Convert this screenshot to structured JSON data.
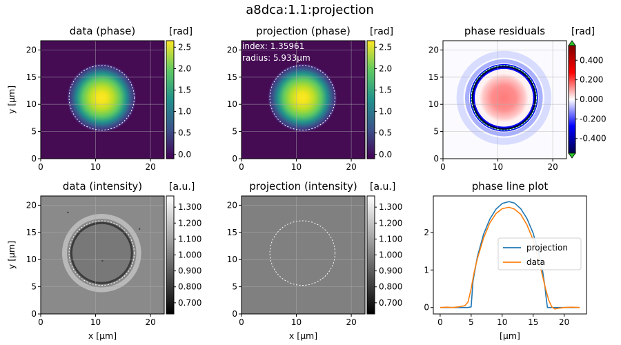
{
  "figure": {
    "suptitle": "a8dca:1.1:projection"
  },
  "chart_data": [
    {
      "id": "data-phase",
      "type": "heatmap",
      "title": "data (phase)",
      "colormap": "viridis",
      "xlabel": "",
      "ylabel": "y [µm]",
      "xlim": [
        0,
        22.5
      ],
      "ylim": [
        0,
        21.7
      ],
      "xticks": [
        "0",
        "10",
        "20"
      ],
      "yticks": [
        "0",
        "5",
        "10",
        "15",
        "20"
      ],
      "colorbar": {
        "label": "[rad]",
        "range": [
          -0.1,
          2.65
        ],
        "ticks": [
          "0.0",
          "0.5",
          "1.0",
          "1.5",
          "2.0",
          "2.5"
        ]
      },
      "circle": {
        "center_um": [
          11.1,
          11.2
        ],
        "radius_um": 5.933
      }
    },
    {
      "id": "projection-phase",
      "type": "heatmap",
      "title": "projection (phase)",
      "colormap": "viridis",
      "xlabel": "",
      "ylabel": "",
      "xlim": [
        0,
        22.5
      ],
      "ylim": [
        0,
        21.7
      ],
      "xticks": [
        "0",
        "10",
        "20"
      ],
      "yticks": [
        "0",
        "5",
        "10",
        "15",
        "20"
      ],
      "annotations": [
        "index: 1.35961",
        "radius: 5.933µm"
      ],
      "colorbar": {
        "label": "[rad]",
        "range": [
          -0.1,
          2.65
        ],
        "ticks": [
          "0.0",
          "0.5",
          "1.0",
          "1.5",
          "2.0",
          "2.5"
        ]
      },
      "circle": {
        "center_um": [
          11.1,
          11.2
        ],
        "radius_um": 5.933
      }
    },
    {
      "id": "phase-residuals",
      "type": "heatmap",
      "title": "phase residuals",
      "colormap": "seismic",
      "xlabel": "",
      "ylabel": "",
      "xlim": [
        0,
        22.5
      ],
      "ylim": [
        0,
        21.7
      ],
      "xticks": [
        "0",
        "10",
        "20"
      ],
      "yticks": [
        "0",
        "5",
        "10",
        "15",
        "20"
      ],
      "colorbar": {
        "label": "[rad]",
        "range": [
          -0.55,
          0.55
        ],
        "ticks": [
          "0.400",
          "0.200",
          "0.000",
          "-0.200",
          "-0.400"
        ],
        "extend": "both",
        "extend_color": "#2ecc2e"
      },
      "circle": {
        "center_um": [
          11.1,
          11.2
        ],
        "radius_um": 5.933
      }
    },
    {
      "id": "data-intensity",
      "type": "heatmap",
      "title": "data (intensity)",
      "colormap": "gray",
      "xlabel": "x [µm]",
      "ylabel": "y [µm]",
      "xlim": [
        0,
        22.5
      ],
      "ylim": [
        0,
        21.7
      ],
      "xticks": [
        "0",
        "10",
        "20"
      ],
      "yticks": [
        "0",
        "5",
        "10",
        "15",
        "20"
      ],
      "colorbar": {
        "label": "[a.u.]",
        "range": [
          0.63,
          1.37
        ],
        "ticks": [
          "1.300",
          "1.200",
          "1.100",
          "1.000",
          "0.900",
          "0.800",
          "0.700"
        ]
      },
      "circle": {
        "center_um": [
          11.1,
          11.2
        ],
        "radius_um": 5.933
      }
    },
    {
      "id": "projection-intensity",
      "type": "heatmap",
      "title": "projection (intensity)",
      "colormap": "gray",
      "xlabel": "x [µm]",
      "ylabel": "",
      "xlim": [
        0,
        22.5
      ],
      "ylim": [
        0,
        21.7
      ],
      "xticks": [
        "0",
        "10",
        "20"
      ],
      "yticks": [
        "0",
        "5",
        "10",
        "15",
        "20"
      ],
      "colorbar": {
        "label": "[a.u.]",
        "range": [
          0.63,
          1.37
        ],
        "ticks": [
          "1.300",
          "1.200",
          "1.100",
          "1.000",
          "0.900",
          "0.800",
          "0.700"
        ]
      },
      "circle": {
        "center_um": [
          11.1,
          11.2
        ],
        "radius_um": 5.933
      }
    },
    {
      "id": "phase-line-plot",
      "type": "line",
      "title": "phase line plot",
      "xlabel": "[µm]",
      "ylabel": "",
      "xlim": [
        -1.1,
        23.6
      ],
      "ylim": [
        -0.17,
        2.97
      ],
      "xticks": [
        "0",
        "5",
        "10",
        "15",
        "20"
      ],
      "yticks": [
        "0",
        "1",
        "2"
      ],
      "legend": "center-right",
      "series": [
        {
          "name": "projection",
          "color": "#1f77b4",
          "x": [
            0,
            4.5,
            5.0,
            5.3,
            6.0,
            7.0,
            8.0,
            9.0,
            10.0,
            11.1,
            12.0,
            13.0,
            14.0,
            15.0,
            16.0,
            16.5,
            16.9,
            17.1,
            17.3,
            22.5
          ],
          "y": [
            0,
            0,
            0.02,
            0.7,
            1.35,
            1.95,
            2.35,
            2.62,
            2.77,
            2.82,
            2.78,
            2.63,
            2.37,
            1.98,
            1.38,
            1.0,
            0.55,
            0.25,
            0.0,
            0.0
          ]
        },
        {
          "name": "data",
          "color": "#ff7f0e",
          "x": [
            0,
            1.0,
            2.0,
            3.0,
            4.0,
            4.5,
            5.0,
            5.5,
            6.0,
            7.0,
            8.0,
            9.0,
            10.0,
            11.1,
            12.0,
            13.0,
            14.0,
            15.0,
            16.0,
            16.5,
            17.0,
            17.5,
            18.0,
            18.5,
            19.0,
            20.0,
            21.0,
            22.5
          ],
          "y": [
            0.0,
            0.01,
            0.0,
            0.02,
            0.05,
            0.15,
            0.5,
            0.95,
            1.3,
            1.85,
            2.25,
            2.5,
            2.63,
            2.67,
            2.62,
            2.48,
            2.2,
            1.8,
            1.2,
            0.85,
            0.5,
            0.2,
            0.02,
            -0.04,
            -0.02,
            0.0,
            0.01,
            0.0
          ]
        }
      ]
    }
  ]
}
